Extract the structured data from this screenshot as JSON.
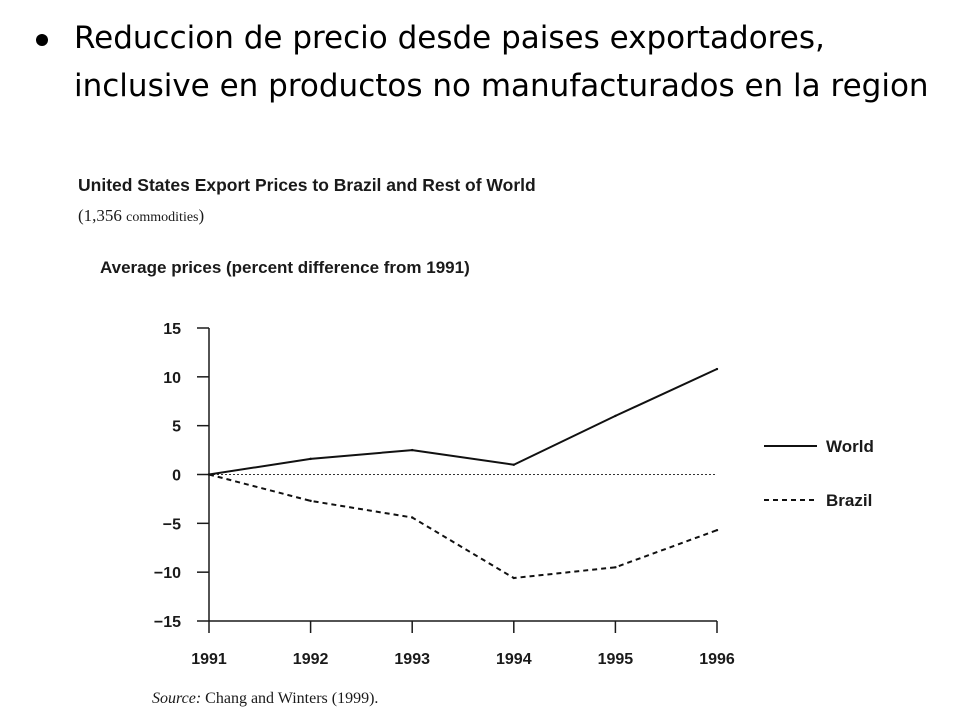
{
  "slide": {
    "bullet_text": "Reduccion de precio desde paises exportadores, inclusive en productos no manufacturados en la region"
  },
  "chart_data": {
    "type": "line",
    "title": "United States Export Prices to Brazil and Rest of World",
    "subtitle_open": "(1,356 ",
    "subtitle_small": "commodities",
    "subtitle_close": ")",
    "ylabel": "Average prices (percent difference from 1991)",
    "xlabel": "",
    "x": [
      "1991",
      "1992",
      "1993",
      "1994",
      "1995",
      "1996"
    ],
    "ylim": [
      -15,
      15
    ],
    "yticks": [
      15,
      10,
      5,
      0,
      -5,
      -10,
      -15
    ],
    "ytick_labels": [
      "15",
      "10",
      "5",
      "0",
      "−5",
      "−10",
      "−15"
    ],
    "zero_reference_line": true,
    "legend_position": "right",
    "series": [
      {
        "name": "World",
        "line_style": "solid",
        "values": [
          0,
          1.6,
          2.5,
          1.0,
          6.0,
          10.8
        ]
      },
      {
        "name": "Brazil",
        "line_style": "dashed",
        "values": [
          0,
          -2.7,
          -4.4,
          -10.6,
          -9.5,
          -5.7
        ]
      }
    ],
    "source_label": "Source:",
    "source_text": " Chang and Winters (1999)."
  }
}
